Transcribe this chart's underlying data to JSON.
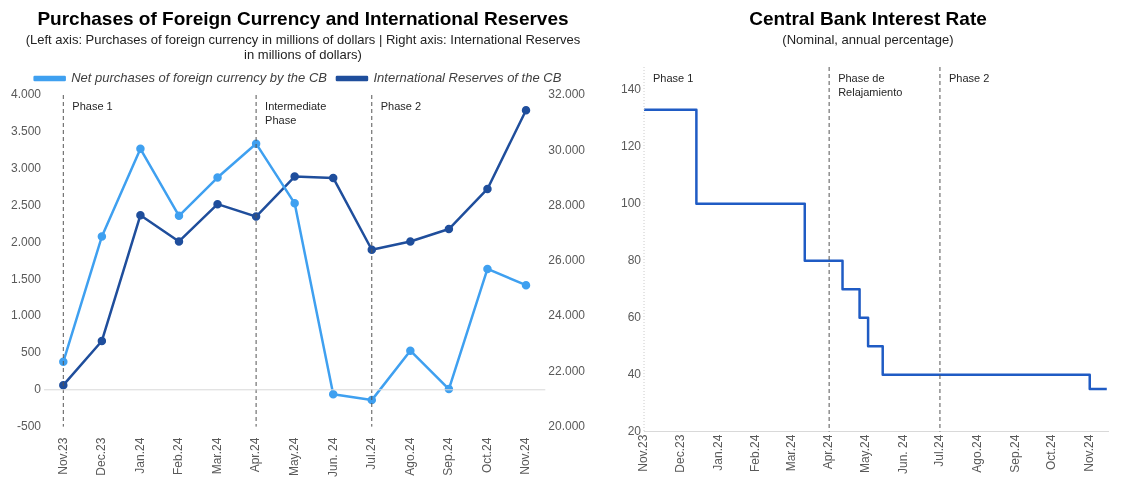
{
  "chart_data": [
    {
      "type": "line",
      "title": "Purchases of Foreign Currency and International Reserves",
      "subtitle": "(Left axis: Purchases of foreign currency in millions of dollars | Right axis: International Reserves in millions of dollars)",
      "categories": [
        "Nov.23",
        "Dec.23",
        "Jan.24",
        "Feb.24",
        "Mar.24",
        "Apr.24",
        "May.24",
        "Jun. 24",
        "Jul.24",
        "Ago.24",
        "Sep.24",
        "Oct.24",
        "Nov.24"
      ],
      "series": [
        {
          "name": "Net purchases of foreign currency by the CB",
          "color": "#3fa0f0",
          "values": [
            380,
            2080,
            3270,
            2360,
            2880,
            3340,
            2530,
            -60,
            -140,
            530,
            10,
            1640,
            1420
          ]
        },
        {
          "name": "International Reserves of the CB",
          "color": "#1f4e9c",
          "axis": "y2",
          "values": [
            21500,
            23100,
            27650,
            26700,
            28050,
            27600,
            29050,
            29000,
            26400,
            26700,
            27150,
            28600,
            31450
          ]
        }
      ],
      "ylim": [
        -500,
        4000
      ],
      "yticks": [
        {
          "value": -500,
          "label": "-500"
        },
        0,
        500,
        {
          "value": 1000,
          "label": "1.000"
        },
        {
          "value": 1500,
          "label": "1.500"
        },
        {
          "value": 2000,
          "label": "2.000"
        },
        {
          "value": 2500,
          "label": "2.500"
        },
        {
          "value": 3000,
          "label": "3.000"
        },
        {
          "value": 3500,
          "label": "3.500"
        },
        {
          "value": 4000,
          "label": "4.000"
        }
      ],
      "y2lim": [
        20000,
        32000
      ],
      "y2ticks": [
        {
          "value": 20000,
          "label": "20.000"
        },
        {
          "value": 22000,
          "label": "22.000"
        },
        {
          "value": 24000,
          "label": "24.000"
        },
        {
          "value": 26000,
          "label": "26.000"
        },
        {
          "value": 28000,
          "label": "28.000"
        },
        {
          "value": 30000,
          "label": "30.000"
        },
        {
          "value": 32000,
          "label": "32.000"
        }
      ],
      "ref_lines": [
        {
          "axis": "x",
          "value": "Nov.23",
          "label": "Phase 1",
          "line_style": "dashed"
        },
        {
          "axis": "x",
          "value": "Apr.24",
          "label": "Intermediate Phase",
          "line_style": "dashed"
        },
        {
          "axis": "x",
          "value": "Jul.24",
          "label": "Phase 2",
          "line_style": "dashed"
        },
        {
          "axis": "y",
          "value": 0,
          "color": "#d9d9d9",
          "line_style": "solid"
        }
      ],
      "marker": "circle",
      "legend": "top",
      "grid": false
    },
    {
      "type": "step",
      "title": "Central Bank Interest Rate",
      "subtitle": "(Nominal, annual percentage)",
      "series": [
        {
          "color": "#1f5bc4",
          "x": [
            "2023-11-01",
            "2023-12-14",
            "2024-03-12",
            "2024-04-12",
            "2024-04-26",
            "2024-05-03",
            "2024-05-15",
            "2024-11-01",
            "2024-11-15"
          ],
          "values": [
            133,
            100,
            80,
            70,
            60,
            50,
            40,
            35,
            35
          ]
        }
      ],
      "xlim": [
        "2023-11-01",
        "2024-11-16"
      ],
      "xticks": [
        {
          "value": "2023-11-01",
          "label": "Nov.23"
        },
        {
          "value": "2023-12-01",
          "label": "Dec.23"
        },
        {
          "value": "2024-01-01",
          "label": "Jan.24"
        },
        {
          "value": "2024-02-01",
          "label": "Feb.24"
        },
        {
          "value": "2024-03-01",
          "label": "Mar.24"
        },
        {
          "value": "2024-04-01",
          "label": "Apr.24"
        },
        {
          "value": "2024-05-01",
          "label": "May.24"
        },
        {
          "value": "2024-06-01",
          "label": "Jun. 24"
        },
        {
          "value": "2024-07-01",
          "label": "Jul.24"
        },
        {
          "value": "2024-08-01",
          "label": "Ago.24"
        },
        {
          "value": "2024-09-01",
          "label": "Sep.24"
        },
        {
          "value": "2024-10-01",
          "label": "Oct.24"
        },
        {
          "value": "2024-11-01",
          "label": "Nov.24"
        }
      ],
      "ylim": [
        20,
        148
      ],
      "yticks": [
        20,
        40,
        60,
        80,
        100,
        120,
        140
      ],
      "ref_lines": [
        {
          "axis": "x",
          "value": "2023-11-01",
          "label": "Phase 1",
          "line_style": "dotted",
          "color": "#cccccc"
        },
        {
          "axis": "x",
          "value": "2024-04-01",
          "label": "Phase de Relajamiento",
          "line_style": "dashed"
        },
        {
          "axis": "x",
          "value": "2024-07-01",
          "label": "Phase 2",
          "line_style": "dashed"
        }
      ],
      "marker": "none",
      "legend": false,
      "grid": false
    }
  ]
}
